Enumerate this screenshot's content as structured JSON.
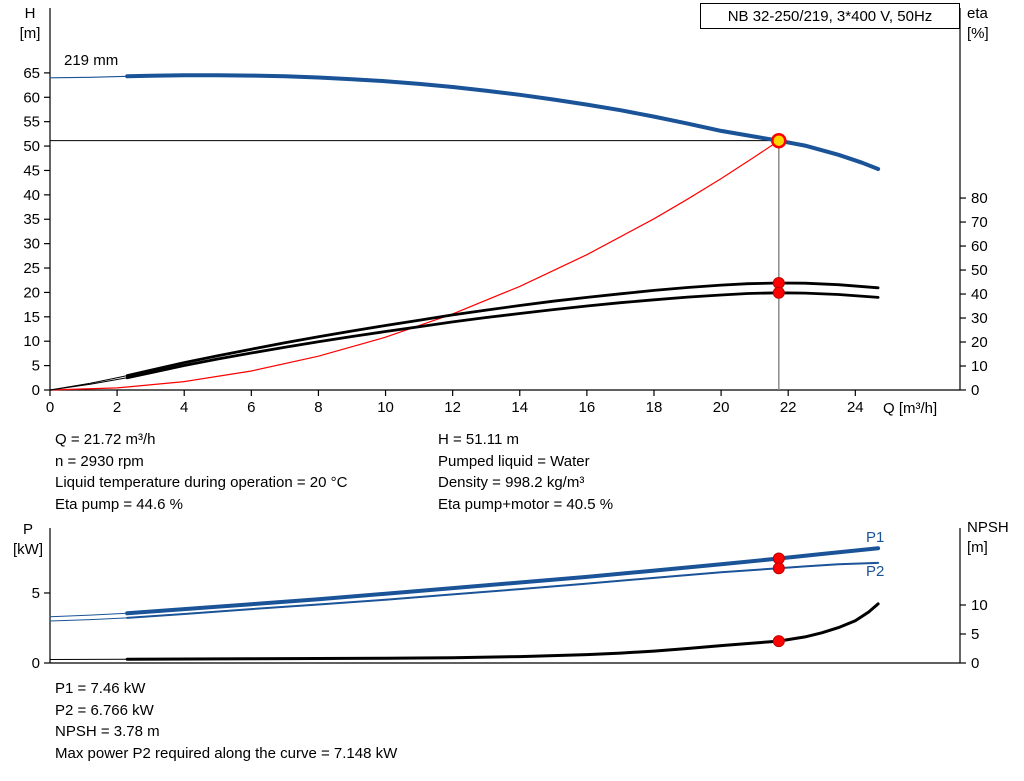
{
  "impeller_label": "219 mm",
  "axes_labels": {
    "top_left": [
      "H",
      "[m]"
    ],
    "top_right": [
      "eta",
      "[%]"
    ],
    "x": "Q [m³/h]",
    "bottom_left": [
      "P",
      "[kW]"
    ],
    "bottom_right": [
      "NPSH",
      "[m]"
    ]
  },
  "info_top_left": [
    "Q = 21.72 m³/h",
    "n = 2930 rpm",
    "Liquid temperature during operation = 20 °C",
    "Eta pump = 44.6 %"
  ],
  "info_top_right": [
    "H = 51.11 m",
    "Pumped liquid = Water",
    "Density = 998.2 kg/m³",
    "Eta pump+motor = 40.5 %"
  ],
  "info_bottom": [
    "P1 = 7.46 kW",
    "P2 = 6.766 kW",
    "NPSH = 3.78 m",
    "Max power P2 required along the curve = 7.148 kW"
  ],
  "colors": {
    "curve_blue": "#1a5397",
    "curve_black": "#000000",
    "system_red": "#ff0000",
    "marker_red": "#ff0000",
    "marker_red_edge": "#c00000",
    "marker_yellow": "#ffd600",
    "guide_gray": "#8c8c8c",
    "axis_black": "#000000"
  },
  "chart_data": [
    {
      "type": "line",
      "name": "qh-eta-chart",
      "title": "NB 32-250/219, 3*400 V, 50Hz",
      "xlabel": "Q [m³/h]",
      "ylabel_left": "H [m]",
      "ylabel_right": "eta [%]",
      "x_range": [
        0,
        27.12
      ],
      "x_ticks": [
        0,
        2,
        4,
        6,
        8,
        10,
        12,
        14,
        16,
        18,
        20,
        22,
        24
      ],
      "y_left_range": [
        0,
        78.3
      ],
      "y_left_ticks": [
        0,
        5,
        10,
        15,
        20,
        25,
        30,
        35,
        40,
        45,
        50,
        55,
        60,
        65
      ],
      "y_right_range": [
        0,
        159.2
      ],
      "y_right_ticks": [
        0,
        10,
        20,
        30,
        40,
        50,
        60,
        70,
        80
      ],
      "operating_point": {
        "Q": 21.72,
        "H": 51.11,
        "eta_pump": 44.6,
        "eta_pump_motor": 40.5
      },
      "guides": [
        {
          "name": "head-guide-line",
          "type": "h",
          "axis": "left",
          "y": 51.11,
          "x0": 0,
          "x1": 21.72,
          "color": "#000000",
          "width": 1
        },
        {
          "name": "flow-guide-line",
          "type": "v",
          "axis": "left",
          "x": 21.72,
          "y0": 0,
          "y1": 51.11,
          "color": "#8c8c8c",
          "width": 1.5
        }
      ],
      "series": [
        {
          "name": "system-curve",
          "axis": "left",
          "color": "#ff0000",
          "width": 1.2,
          "points": [
            [
              0,
              0
            ],
            [
              2,
              0.43
            ],
            [
              4,
              1.73
            ],
            [
              6,
              3.9
            ],
            [
              8,
              6.93
            ],
            [
              10,
              10.83
            ],
            [
              12,
              15.6
            ],
            [
              14,
              21.23
            ],
            [
              16,
              27.73
            ],
            [
              18,
              35.1
            ],
            [
              19,
              39.11
            ],
            [
              20,
              43.33
            ],
            [
              21,
              47.77
            ],
            [
              21.72,
              51.11
            ]
          ]
        },
        {
          "name": "head-curve-lead",
          "axis": "left",
          "color": "#1a5397",
          "width": 1.2,
          "points": [
            [
              0,
              64.0
            ],
            [
              1.2,
              64.1
            ],
            [
              2.3,
              64.3
            ]
          ]
        },
        {
          "name": "head-curve",
          "axis": "left",
          "color": "#1a5397",
          "width": 4,
          "points": [
            [
              2.3,
              64.3
            ],
            [
              3,
              64.4
            ],
            [
              4,
              64.5
            ],
            [
              5,
              64.5
            ],
            [
              6,
              64.45
            ],
            [
              7,
              64.3
            ],
            [
              8,
              64.05
            ],
            [
              9,
              63.7
            ],
            [
              10,
              63.3
            ],
            [
              11,
              62.75
            ],
            [
              12,
              62.1
            ],
            [
              13,
              61.35
            ],
            [
              14,
              60.5
            ],
            [
              15,
              59.55
            ],
            [
              16,
              58.5
            ],
            [
              17,
              57.35
            ],
            [
              18,
              56.05
            ],
            [
              19,
              54.6
            ],
            [
              20,
              53.1
            ],
            [
              21,
              51.95
            ],
            [
              21.72,
              51.11
            ],
            [
              22.5,
              50.1
            ],
            [
              23.5,
              48.2
            ],
            [
              24.2,
              46.6
            ],
            [
              24.68,
              45.3
            ]
          ]
        },
        {
          "name": "eta-pump-lead",
          "axis": "right",
          "color": "#000000",
          "width": 1,
          "points": [
            [
              0,
              0
            ],
            [
              1.2,
              2.8
            ],
            [
              2.3,
              6.0
            ]
          ]
        },
        {
          "name": "eta-pump-motor-lead",
          "axis": "right",
          "color": "#000000",
          "width": 1,
          "points": [
            [
              0,
              0
            ],
            [
              1.2,
              2.4
            ],
            [
              2.3,
              5.1
            ]
          ]
        },
        {
          "name": "eta-pump-curve",
          "axis": "right",
          "color": "#000000",
          "width": 2.8,
          "points": [
            [
              2.3,
              6.0
            ],
            [
              3,
              8.2
            ],
            [
              4,
              11.4
            ],
            [
              5,
              14.3
            ],
            [
              6,
              17.0
            ],
            [
              7,
              19.7
            ],
            [
              8,
              22.2
            ],
            [
              9,
              24.6
            ],
            [
              10,
              26.9
            ],
            [
              11,
              29.1
            ],
            [
              12,
              31.3
            ],
            [
              13,
              33.3
            ],
            [
              14,
              35.2
            ],
            [
              15,
              37.0
            ],
            [
              16,
              38.6
            ],
            [
              17,
              40.1
            ],
            [
              18,
              41.5
            ],
            [
              19,
              42.7
            ],
            [
              20,
              43.7
            ],
            [
              20.8,
              44.3
            ],
            [
              21.72,
              44.6
            ],
            [
              22.5,
              44.5
            ],
            [
              23.5,
              43.9
            ],
            [
              24.68,
              42.6
            ]
          ]
        },
        {
          "name": "eta-pump-motor-curve",
          "axis": "right",
          "color": "#000000",
          "width": 2.8,
          "points": [
            [
              2.3,
              5.1
            ],
            [
              3,
              7.2
            ],
            [
              4,
              10.2
            ],
            [
              5,
              12.9
            ],
            [
              6,
              15.4
            ],
            [
              7,
              17.8
            ],
            [
              8,
              20.1
            ],
            [
              9,
              22.3
            ],
            [
              10,
              24.4
            ],
            [
              11,
              26.4
            ],
            [
              12,
              28.4
            ],
            [
              13,
              30.2
            ],
            [
              14,
              31.9
            ],
            [
              15,
              33.5
            ],
            [
              16,
              35.0
            ],
            [
              17,
              36.4
            ],
            [
              18,
              37.6
            ],
            [
              19,
              38.7
            ],
            [
              20,
              39.6
            ],
            [
              20.8,
              40.2
            ],
            [
              21.72,
              40.5
            ],
            [
              22.5,
              40.4
            ],
            [
              23.5,
              39.8
            ],
            [
              24.68,
              38.6
            ]
          ]
        }
      ],
      "markers": [
        {
          "name": "eta-pump-point",
          "x": 21.72,
          "y": 44.6,
          "axis": "right",
          "r": 5.5,
          "fill": "#ff0000",
          "stroke": "#c00000",
          "sw": 1,
          "interactable": false
        },
        {
          "name": "eta-pump-motor-point",
          "x": 21.72,
          "y": 40.5,
          "axis": "right",
          "r": 5.5,
          "fill": "#ff0000",
          "stroke": "#c00000",
          "sw": 1,
          "interactable": false
        },
        {
          "name": "duty-point",
          "x": 21.72,
          "y": 51.11,
          "axis": "left",
          "r": 6.5,
          "fill": "#ffd600",
          "stroke": "#ff0000",
          "sw": 2.5,
          "interactable": true
        }
      ]
    },
    {
      "type": "line",
      "name": "power-npsh-chart",
      "title": "",
      "xlabel": "",
      "ylabel_left": "P [kW]",
      "ylabel_right": "NPSH [m]",
      "legend": [
        "P1",
        "P2"
      ],
      "x_range": [
        0,
        27.12
      ],
      "x_ticks": [],
      "y_left_range": [
        0,
        9.64
      ],
      "y_left_ticks": [
        0,
        5
      ],
      "y_right_range": [
        0,
        23.28
      ],
      "y_right_ticks": [
        0,
        5,
        10
      ],
      "operating_point": {
        "Q": 21.72,
        "P1": 7.46,
        "P2": 6.766,
        "NPSH": 3.78
      },
      "guides": [],
      "series": [
        {
          "name": "p1-curve-lead",
          "axis": "left",
          "color": "#1a5397",
          "width": 1,
          "points": [
            [
              0,
              3.3
            ],
            [
              1.2,
              3.42
            ],
            [
              2.3,
              3.55
            ]
          ]
        },
        {
          "name": "p1-curve",
          "axis": "left",
          "color": "#1a5397",
          "width": 4,
          "points": [
            [
              2.3,
              3.55
            ],
            [
              4,
              3.85
            ],
            [
              6,
              4.2
            ],
            [
              8,
              4.55
            ],
            [
              10,
              4.95
            ],
            [
              12,
              5.35
            ],
            [
              14,
              5.75
            ],
            [
              16,
              6.15
            ],
            [
              18,
              6.6
            ],
            [
              20,
              7.05
            ],
            [
              21.72,
              7.46
            ],
            [
              23,
              7.78
            ],
            [
              24.68,
              8.2
            ]
          ]
        },
        {
          "name": "p2-curve-lead",
          "axis": "left",
          "color": "#1a5397",
          "width": 1,
          "points": [
            [
              0,
              3.0
            ],
            [
              1.2,
              3.1
            ],
            [
              2.3,
              3.22
            ]
          ]
        },
        {
          "name": "p2-curve",
          "axis": "left",
          "color": "#1a5397",
          "width": 2,
          "points": [
            [
              2.3,
              3.22
            ],
            [
              4,
              3.5
            ],
            [
              6,
              3.85
            ],
            [
              8,
              4.18
            ],
            [
              10,
              4.52
            ],
            [
              12,
              4.9
            ],
            [
              14,
              5.28
            ],
            [
              16,
              5.67
            ],
            [
              18,
              6.08
            ],
            [
              20,
              6.48
            ],
            [
              21.72,
              6.766
            ],
            [
              22.5,
              6.9
            ],
            [
              23.5,
              7.05
            ],
            [
              24.68,
              7.15
            ]
          ]
        },
        {
          "name": "npsh-curve-lead",
          "axis": "right",
          "color": "#000000",
          "width": 1,
          "points": [
            [
              0,
              0.6
            ],
            [
              1.2,
              0.62
            ],
            [
              2.3,
              0.65
            ]
          ]
        },
        {
          "name": "npsh-curve",
          "axis": "right",
          "color": "#000000",
          "width": 3,
          "points": [
            [
              2.3,
              0.65
            ],
            [
              6,
              0.72
            ],
            [
              10,
              0.82
            ],
            [
              12,
              0.92
            ],
            [
              14,
              1.1
            ],
            [
              16,
              1.45
            ],
            [
              17,
              1.7
            ],
            [
              18,
              2.05
            ],
            [
              19,
              2.5
            ],
            [
              20,
              3.0
            ],
            [
              21,
              3.45
            ],
            [
              21.72,
              3.78
            ],
            [
              22.5,
              4.5
            ],
            [
              23,
              5.2
            ],
            [
              23.5,
              6.1
            ],
            [
              24,
              7.3
            ],
            [
              24.4,
              8.8
            ],
            [
              24.68,
              10.2
            ]
          ]
        }
      ],
      "markers": [
        {
          "name": "p1-point",
          "x": 21.72,
          "y": 7.46,
          "axis": "left",
          "r": 5.5,
          "fill": "#ff0000",
          "stroke": "#c00000",
          "sw": 1,
          "interactable": false
        },
        {
          "name": "p2-point",
          "x": 21.72,
          "y": 6.766,
          "axis": "left",
          "r": 5.5,
          "fill": "#ff0000",
          "stroke": "#c00000",
          "sw": 1,
          "interactable": false
        },
        {
          "name": "npsh-point",
          "x": 21.72,
          "y": 3.78,
          "axis": "right",
          "r": 5.5,
          "fill": "#ff0000",
          "stroke": "#c00000",
          "sw": 1,
          "interactable": false
        }
      ]
    }
  ]
}
